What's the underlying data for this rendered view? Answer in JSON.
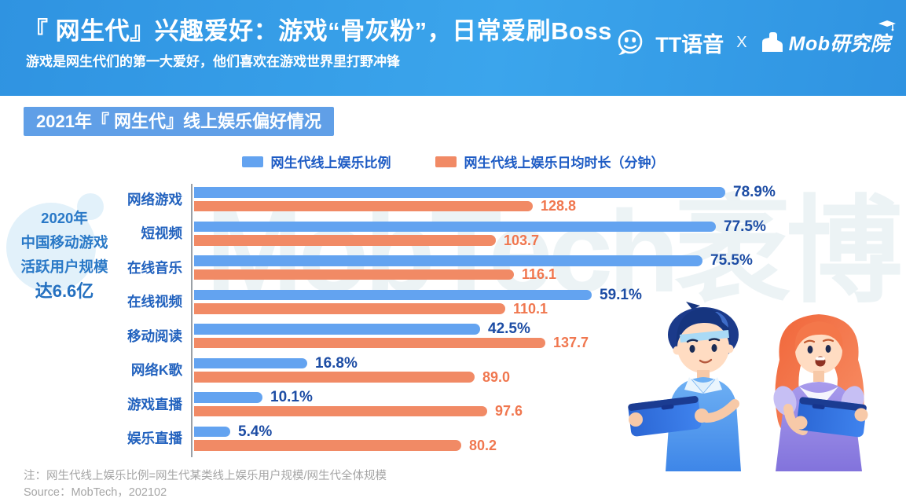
{
  "header": {
    "title": "『 网生代』兴趣爱好：游戏“骨灰粉”，日常爱刷Boss",
    "subtitle": "游戏是网生代们的第一大爱好，他们喜欢在游戏世界里打野冲锋",
    "brand": {
      "tt_label": "TT语音",
      "separator": "X",
      "mob_label": "Mob研究院"
    }
  },
  "section_badge": "2021年『 网生代』线上娱乐偏好情况",
  "side_note": {
    "line1": "2020年",
    "line2": "中国移动游戏",
    "line3": "活跃用户规模",
    "line4": "达6.6亿"
  },
  "watermark": "MobTech袤博",
  "chart_data": {
    "type": "bar",
    "orientation": "horizontal",
    "title": "2021年『 网生代』线上娱乐偏好情况",
    "categories": [
      "网络游戏",
      "短视频",
      "在线音乐",
      "在线视频",
      "移动阅读",
      "网络K歌",
      "游戏直播",
      "娱乐直播"
    ],
    "series": [
      {
        "name": "网生代线上娱乐比例",
        "unit": "%",
        "color": "#63A3F0",
        "values": [
          78.9,
          77.5,
          75.5,
          59.1,
          42.5,
          16.8,
          10.1,
          5.4
        ]
      },
      {
        "name": "网生代线上娱乐日均时长（分钟）",
        "unit": "分钟",
        "color": "#F18A65",
        "values": [
          128.8,
          103.7,
          116.1,
          110.1,
          137.7,
          89.0,
          97.6,
          80.2
        ]
      }
    ],
    "legend_position": "top",
    "value_labels": true
  },
  "footer": {
    "note": "注：网生代线上娱乐比例=网生代某类线上娱乐用户规模/网生代全体规模",
    "source": "Source：MobTech，202102"
  }
}
